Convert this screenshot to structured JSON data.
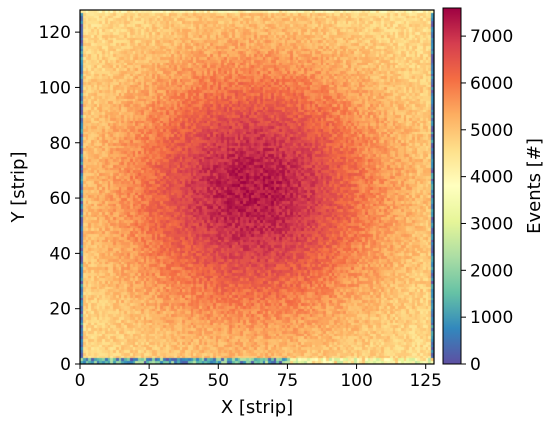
{
  "chart_data": {
    "type": "heatmap",
    "title": "",
    "xlabel": "X [strip]",
    "ylabel": "Y [strip]",
    "xlim": [
      0,
      128
    ],
    "ylim": [
      0,
      128
    ],
    "x_ticks": [
      0,
      25,
      50,
      75,
      100,
      125
    ],
    "y_ticks": [
      0,
      20,
      40,
      60,
      80,
      100,
      120
    ],
    "grid": false,
    "colormap": "Spectral_r",
    "colormap_stops": [
      "#5e4fa2",
      "#3288bd",
      "#66c2a5",
      "#abdda4",
      "#e6f598",
      "#ffffbf",
      "#fee08b",
      "#fdae61",
      "#f46d43",
      "#d53e4f",
      "#9e0142"
    ],
    "colorbar": {
      "label": "Events [#]",
      "range": [
        0,
        7600
      ],
      "ticks": [
        0,
        1000,
        2000,
        3000,
        4000,
        5000,
        6000,
        7000
      ],
      "placement": "right"
    },
    "distribution": {
      "shape": "2D radial peak",
      "peak_x": 62,
      "peak_y": 62,
      "peak_value": 7300,
      "corner_value": 4500,
      "edge_rows_value": 0
    }
  }
}
